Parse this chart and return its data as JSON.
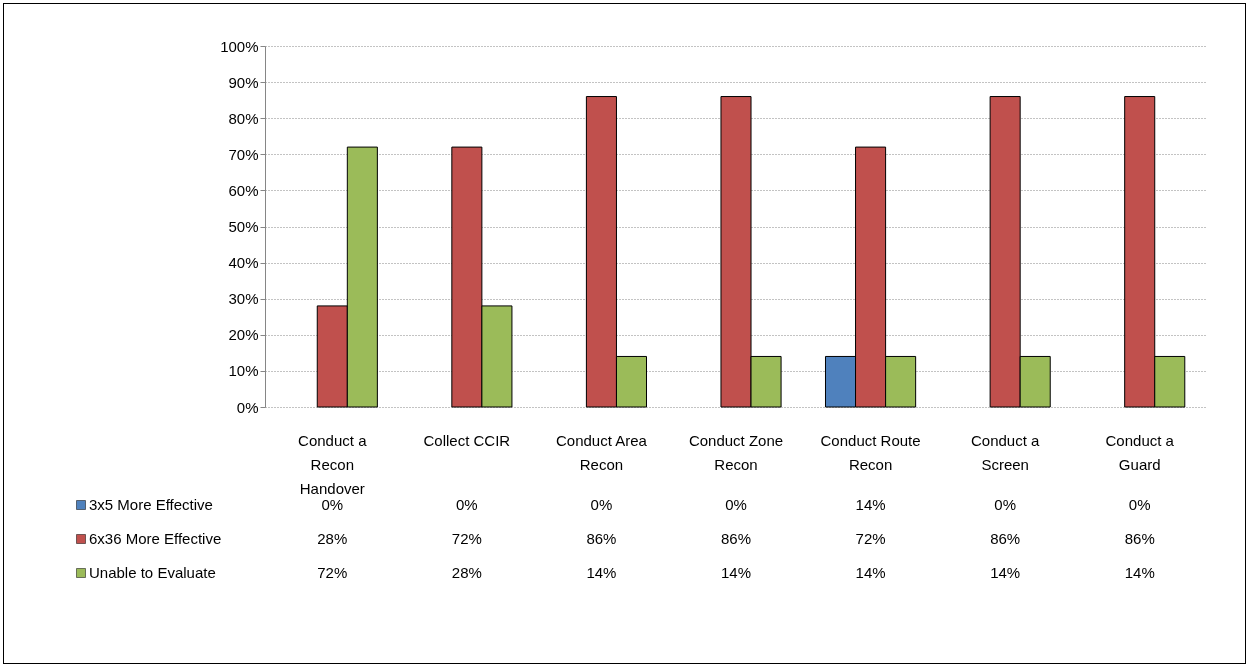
{
  "chart_data": {
    "type": "bar",
    "categories": [
      "Conduct a Recon Handover",
      "Collect CCIR",
      "Conduct Area Recon",
      "Conduct Zone Recon",
      "Conduct Route Recon",
      "Conduct a Screen",
      "Conduct a Guard"
    ],
    "series": [
      {
        "name": "3x5 More Effective",
        "color": "#4f81bd",
        "values": [
          0,
          0,
          0,
          0,
          14,
          0,
          0
        ],
        "value_labels": [
          "0%",
          "0%",
          "0%",
          "0%",
          "14%",
          "0%",
          "0%"
        ]
      },
      {
        "name": "6x36 More Effective",
        "color": "#c0504d",
        "values": [
          28,
          72,
          86,
          86,
          72,
          86,
          86
        ],
        "value_labels": [
          "28%",
          "72%",
          "86%",
          "86%",
          "72%",
          "86%",
          "86%"
        ]
      },
      {
        "name": "Unable to Evaluate",
        "color": "#9bbb59",
        "values": [
          72,
          28,
          14,
          14,
          14,
          14,
          14
        ],
        "value_labels": [
          "72%",
          "28%",
          "14%",
          "14%",
          "14%",
          "14%",
          "14%"
        ]
      }
    ],
    "ylim": [
      0,
      100
    ],
    "yticks": [
      {
        "value": 0,
        "label": "0%"
      },
      {
        "value": 10,
        "label": "10%"
      },
      {
        "value": 20,
        "label": "20%"
      },
      {
        "value": 30,
        "label": "30%"
      },
      {
        "value": 40,
        "label": "40%"
      },
      {
        "value": 50,
        "label": "50%"
      },
      {
        "value": 60,
        "label": "60%"
      },
      {
        "value": 70,
        "label": "70%"
      },
      {
        "value": 80,
        "label": "80%"
      },
      {
        "value": 90,
        "label": "90%"
      },
      {
        "value": 100,
        "label": "100%"
      }
    ],
    "grid": "y",
    "legend": "bottom left"
  }
}
